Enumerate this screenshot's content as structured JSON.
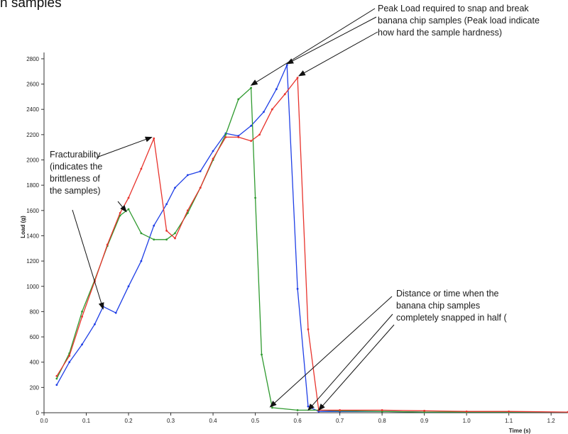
{
  "page_fragment": "n samples",
  "chart_data": {
    "type": "line",
    "xlabel": "Time (s)",
    "ylabel": "Load (g)",
    "xlim": [
      0,
      1.24
    ],
    "ylim": [
      0,
      2850
    ],
    "x_ticks": [
      0.0,
      0.1,
      0.2,
      0.3,
      0.4,
      0.5,
      0.6,
      0.7,
      0.8,
      0.9,
      1.0,
      1.1,
      1.2
    ],
    "x_tick_labels": [
      "0.0",
      "0.1",
      "0.2",
      "0.3",
      "0.4",
      "0.5",
      "0.6",
      "0.7",
      "0.8",
      "0.9",
      "1.0",
      "1.1",
      "1.2"
    ],
    "y_ticks": [
      0,
      200,
      400,
      600,
      800,
      1000,
      1200,
      1400,
      1600,
      1800,
      2000,
      2200,
      2400,
      2600,
      2800
    ],
    "y_tick_labels": [
      "0",
      "200",
      "400",
      "600",
      "800",
      "1000",
      "1200",
      "1400",
      "1600",
      "1800",
      "2000",
      "2200",
      "2400",
      "2600",
      "2800"
    ],
    "grid": false,
    "series": [
      {
        "color": "#1f3fe6",
        "points": [
          [
            0.03,
            220
          ],
          [
            0.06,
            400
          ],
          [
            0.09,
            540
          ],
          [
            0.12,
            700
          ],
          [
            0.14,
            840
          ],
          [
            0.17,
            790
          ],
          [
            0.2,
            1000
          ],
          [
            0.23,
            1200
          ],
          [
            0.26,
            1480
          ],
          [
            0.29,
            1650
          ],
          [
            0.31,
            1780
          ],
          [
            0.34,
            1880
          ],
          [
            0.37,
            1910
          ],
          [
            0.4,
            2070
          ],
          [
            0.43,
            2210
          ],
          [
            0.46,
            2190
          ],
          [
            0.49,
            2270
          ],
          [
            0.52,
            2380
          ],
          [
            0.55,
            2560
          ],
          [
            0.575,
            2750
          ],
          [
            0.6,
            980
          ],
          [
            0.625,
            50
          ],
          [
            0.65,
            10
          ],
          [
            0.7,
            10
          ],
          [
            0.8,
            10
          ],
          [
            0.9,
            5
          ],
          [
            1.0,
            5
          ],
          [
            1.1,
            5
          ],
          [
            1.24,
            5
          ]
        ]
      },
      {
        "color": "#2f9a2f",
        "points": [
          [
            0.03,
            270
          ],
          [
            0.06,
            470
          ],
          [
            0.09,
            800
          ],
          [
            0.12,
            1050
          ],
          [
            0.15,
            1320
          ],
          [
            0.18,
            1560
          ],
          [
            0.2,
            1610
          ],
          [
            0.23,
            1420
          ],
          [
            0.26,
            1370
          ],
          [
            0.29,
            1370
          ],
          [
            0.31,
            1420
          ],
          [
            0.34,
            1580
          ],
          [
            0.37,
            1780
          ],
          [
            0.4,
            2000
          ],
          [
            0.43,
            2200
          ],
          [
            0.46,
            2480
          ],
          [
            0.49,
            2570
          ],
          [
            0.5,
            1700
          ],
          [
            0.515,
            460
          ],
          [
            0.54,
            40
          ],
          [
            0.6,
            20
          ],
          [
            0.65,
            20
          ],
          [
            0.7,
            15
          ],
          [
            0.8,
            10
          ],
          [
            0.9,
            5
          ],
          [
            1.0,
            5
          ],
          [
            1.1,
            5
          ],
          [
            1.24,
            5
          ]
        ]
      },
      {
        "color": "#e8332c",
        "points": [
          [
            0.03,
            290
          ],
          [
            0.06,
            450
          ],
          [
            0.09,
            760
          ],
          [
            0.12,
            1040
          ],
          [
            0.15,
            1330
          ],
          [
            0.18,
            1580
          ],
          [
            0.2,
            1700
          ],
          [
            0.23,
            1930
          ],
          [
            0.26,
            2170
          ],
          [
            0.29,
            1440
          ],
          [
            0.31,
            1380
          ],
          [
            0.34,
            1600
          ],
          [
            0.37,
            1780
          ],
          [
            0.4,
            2010
          ],
          [
            0.43,
            2180
          ],
          [
            0.46,
            2180
          ],
          [
            0.49,
            2150
          ],
          [
            0.51,
            2200
          ],
          [
            0.54,
            2400
          ],
          [
            0.57,
            2520
          ],
          [
            0.6,
            2650
          ],
          [
            0.625,
            660
          ],
          [
            0.65,
            20
          ],
          [
            0.7,
            20
          ],
          [
            0.8,
            20
          ],
          [
            0.9,
            15
          ],
          [
            1.0,
            10
          ],
          [
            1.1,
            10
          ],
          [
            1.24,
            5
          ]
        ]
      }
    ],
    "annotations": [
      {
        "id": "peak",
        "lines": [
          "Peak Load required to snap and break",
          "banana chip samples (Peak load indicate",
          "how hard the sample hardness)"
        ]
      },
      {
        "id": "fracture",
        "lines": [
          "Fracturability",
          "(indicates the",
          "brittleness of",
          "the samples)"
        ]
      },
      {
        "id": "distance",
        "lines": [
          "Distance or time when the",
          "banana chip samples",
          "completely snapped in half ("
        ]
      }
    ]
  }
}
